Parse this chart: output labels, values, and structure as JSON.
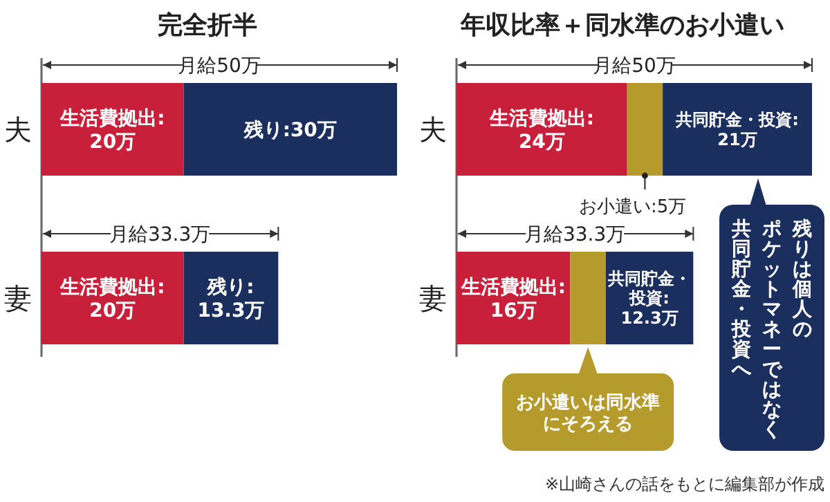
{
  "chart_data": [
    {
      "type": "bar",
      "orientation": "horizontal",
      "stacked": true,
      "title": "完全折半",
      "categories": [
        "夫",
        "妻"
      ],
      "series": [
        {
          "color": "#c8203a",
          "values": [
            20,
            20
          ],
          "value_labels": [
            "生活費拠出:\n20万",
            "生活費拠出:\n20万"
          ]
        },
        {
          "color": "#1b2f5e",
          "values": [
            30,
            13.3
          ],
          "value_labels": [
            "残り:30万",
            "残り:\n13.3万"
          ]
        }
      ],
      "totals": [
        "月給50万",
        "月給33.3万"
      ]
    },
    {
      "type": "bar",
      "orientation": "horizontal",
      "stacked": true,
      "title": "年収比率＋同水準のお小遣い",
      "categories": [
        "夫",
        "妻"
      ],
      "series": [
        {
          "color": "#c8203a",
          "values": [
            24,
            16
          ],
          "value_labels": [
            "生活費拠出:\n24万",
            "生活費拠出:\n16万"
          ]
        },
        {
          "color": "#b59a2c",
          "values": [
            5,
            5
          ],
          "value_labels": [
            "お小遣い:5万",
            null
          ]
        },
        {
          "color": "#1b2f5e",
          "values": [
            21,
            12.3
          ],
          "value_labels": [
            "共同貯金・投資:\n21万",
            "共同貯金・投資:\n12.3万"
          ]
        }
      ],
      "totals": [
        "月給50万",
        "月給33.3万"
      ],
      "annotations": [
        "お小遣いは同水準にそろえる",
        "残りは個人の",
        "ポケットマネーではなく",
        "共同貯金・投資へ",
        "※山崎さんの話をもとに編集部が作成"
      ]
    }
  ]
}
